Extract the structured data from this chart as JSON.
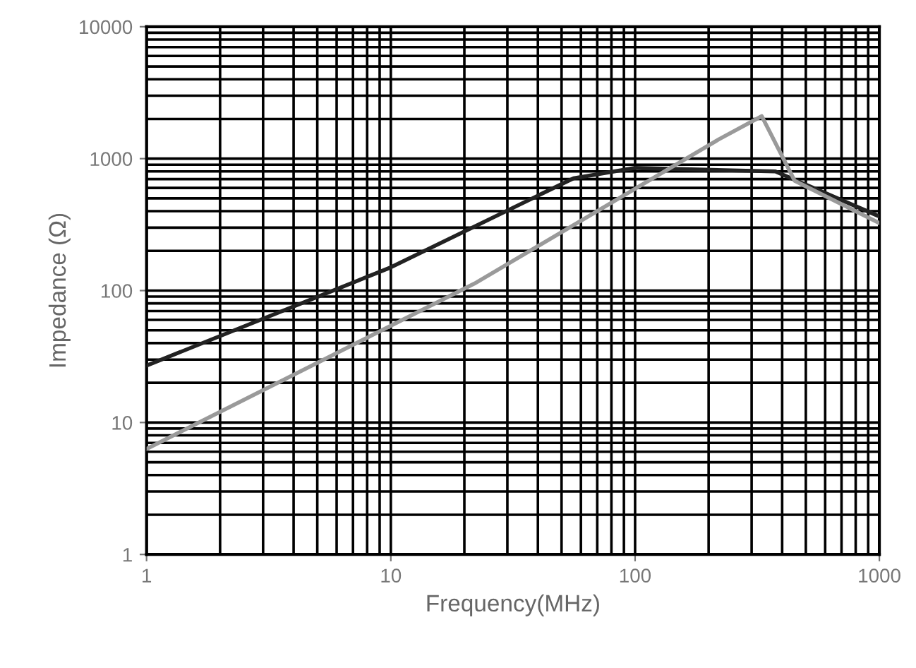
{
  "chart_data": {
    "type": "line",
    "xlabel": "Frequency(MHz)",
    "ylabel": "Impedance (Ω)",
    "log": "xy",
    "xlim": [
      1,
      1000
    ],
    "xticks": [
      1,
      10,
      100,
      1000
    ],
    "ylim": [
      1,
      10000
    ],
    "yticks": [
      1,
      10,
      100,
      1000,
      10000
    ],
    "grid": true,
    "line_style": "solid",
    "series": [
      {
        "color": "#222222",
        "x": [
          1,
          10,
          56,
          100,
          375,
          1000
        ],
        "values": [
          27,
          150,
          710,
          850,
          800,
          365
        ]
      },
      {
        "color": "#9a9a9a",
        "x": [
          1,
          22,
          220,
          330,
          450,
          1000
        ],
        "values": [
          6.3,
          113,
          1400,
          2100,
          680,
          325
        ]
      }
    ]
  }
}
